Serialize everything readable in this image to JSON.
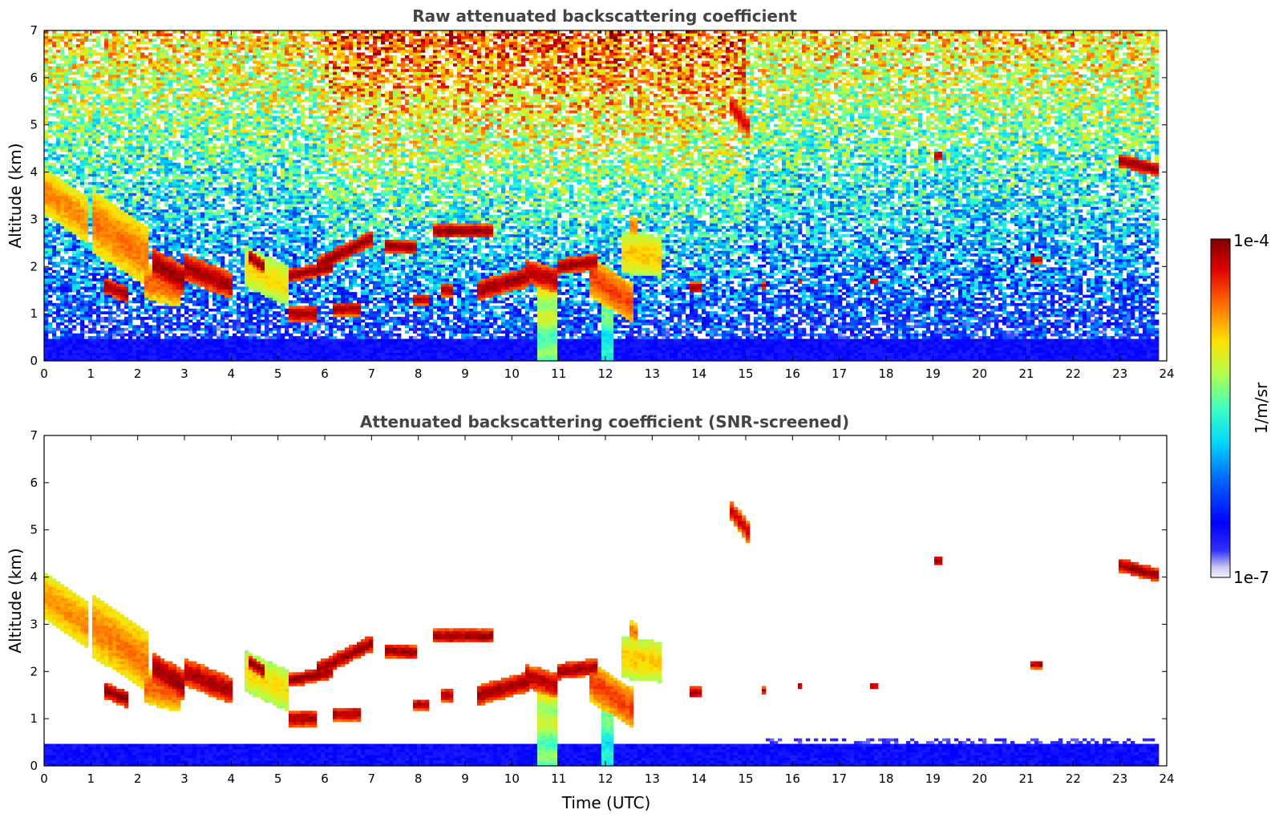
{
  "chart_data": [
    {
      "type": "heatmap",
      "title": "Raw attenuated backscattering coefficient",
      "xlabel": "",
      "ylabel": "Altitude (km)",
      "xlim": [
        0,
        24
      ],
      "ylim": [
        0,
        7
      ],
      "xticks": [
        "0",
        "1",
        "2",
        "3",
        "4",
        "5",
        "6",
        "7",
        "8",
        "9",
        "10",
        "11",
        "12",
        "13",
        "14",
        "15",
        "16",
        "17",
        "18",
        "19",
        "20",
        "21",
        "22",
        "23",
        "24"
      ],
      "yticks": [
        "0",
        "1",
        "2",
        "3",
        "4",
        "5",
        "6",
        "7"
      ],
      "colorscale": "jet, log",
      "screened": false
    },
    {
      "type": "heatmap",
      "title": "Attenuated backscattering coefficient (SNR-screened)",
      "xlabel": "Time (UTC)",
      "ylabel": "Altitude (km)",
      "xlim": [
        0,
        24
      ],
      "ylim": [
        0,
        7
      ],
      "xticks": [
        "0",
        "1",
        "2",
        "3",
        "4",
        "5",
        "6",
        "7",
        "8",
        "9",
        "10",
        "11",
        "12",
        "13",
        "14",
        "15",
        "16",
        "17",
        "18",
        "19",
        "20",
        "21",
        "22",
        "23",
        "24"
      ],
      "yticks": [
        "0",
        "1",
        "2",
        "3",
        "4",
        "5",
        "6",
        "7"
      ],
      "colorscale": "jet, log",
      "screened": true
    }
  ],
  "colorbar": {
    "label": "1/m/sr",
    "max_label": "1e-4",
    "min_label": "1e-7",
    "range": [
      1e-07,
      0.0001
    ],
    "scale": "log"
  },
  "colors": {
    "low": "#0000cc",
    "mid": "#ffff00",
    "high": "#7f0000",
    "background": "#ffffff",
    "title": "#444444"
  }
}
